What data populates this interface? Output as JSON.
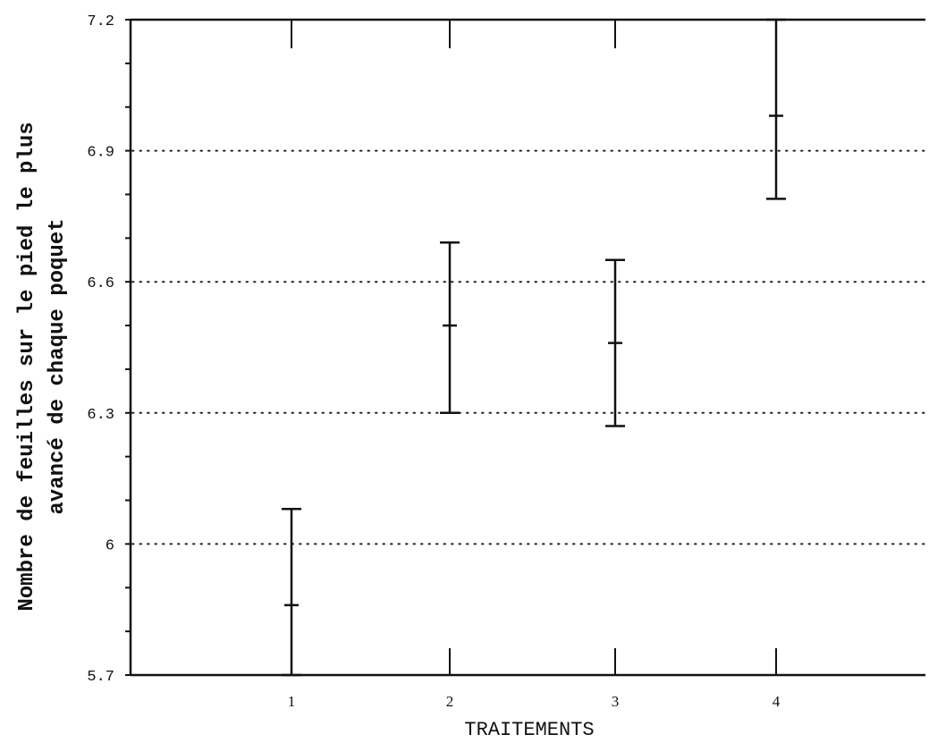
{
  "chart_data": {
    "type": "scatter",
    "title": "",
    "xlabel": "TRAITEMENTS",
    "ylabel_lines": [
      "Nombre de feuilles sur le pied le plus",
      "avancé de chaque poquet"
    ],
    "x_ticks": [
      "1",
      "2",
      "3",
      "4"
    ],
    "y_ticks": [
      "5.7",
      "6",
      "6.3",
      "6.6",
      "6.9",
      "7.2"
    ],
    "ylim": [
      5.7,
      7.2
    ],
    "grid": "dotted horizontal lines at y ticks",
    "series": [
      {
        "points": [
          {
            "x": "1",
            "mean": 5.86,
            "low": 5.7,
            "high": 6.08
          },
          {
            "x": "2",
            "mean": 6.5,
            "low": 6.3,
            "high": 6.69
          },
          {
            "x": "3",
            "mean": 6.46,
            "low": 6.27,
            "high": 6.65
          },
          {
            "x": "4",
            "mean": 6.98,
            "low": 6.79,
            "high": 7.2
          }
        ]
      }
    ]
  }
}
